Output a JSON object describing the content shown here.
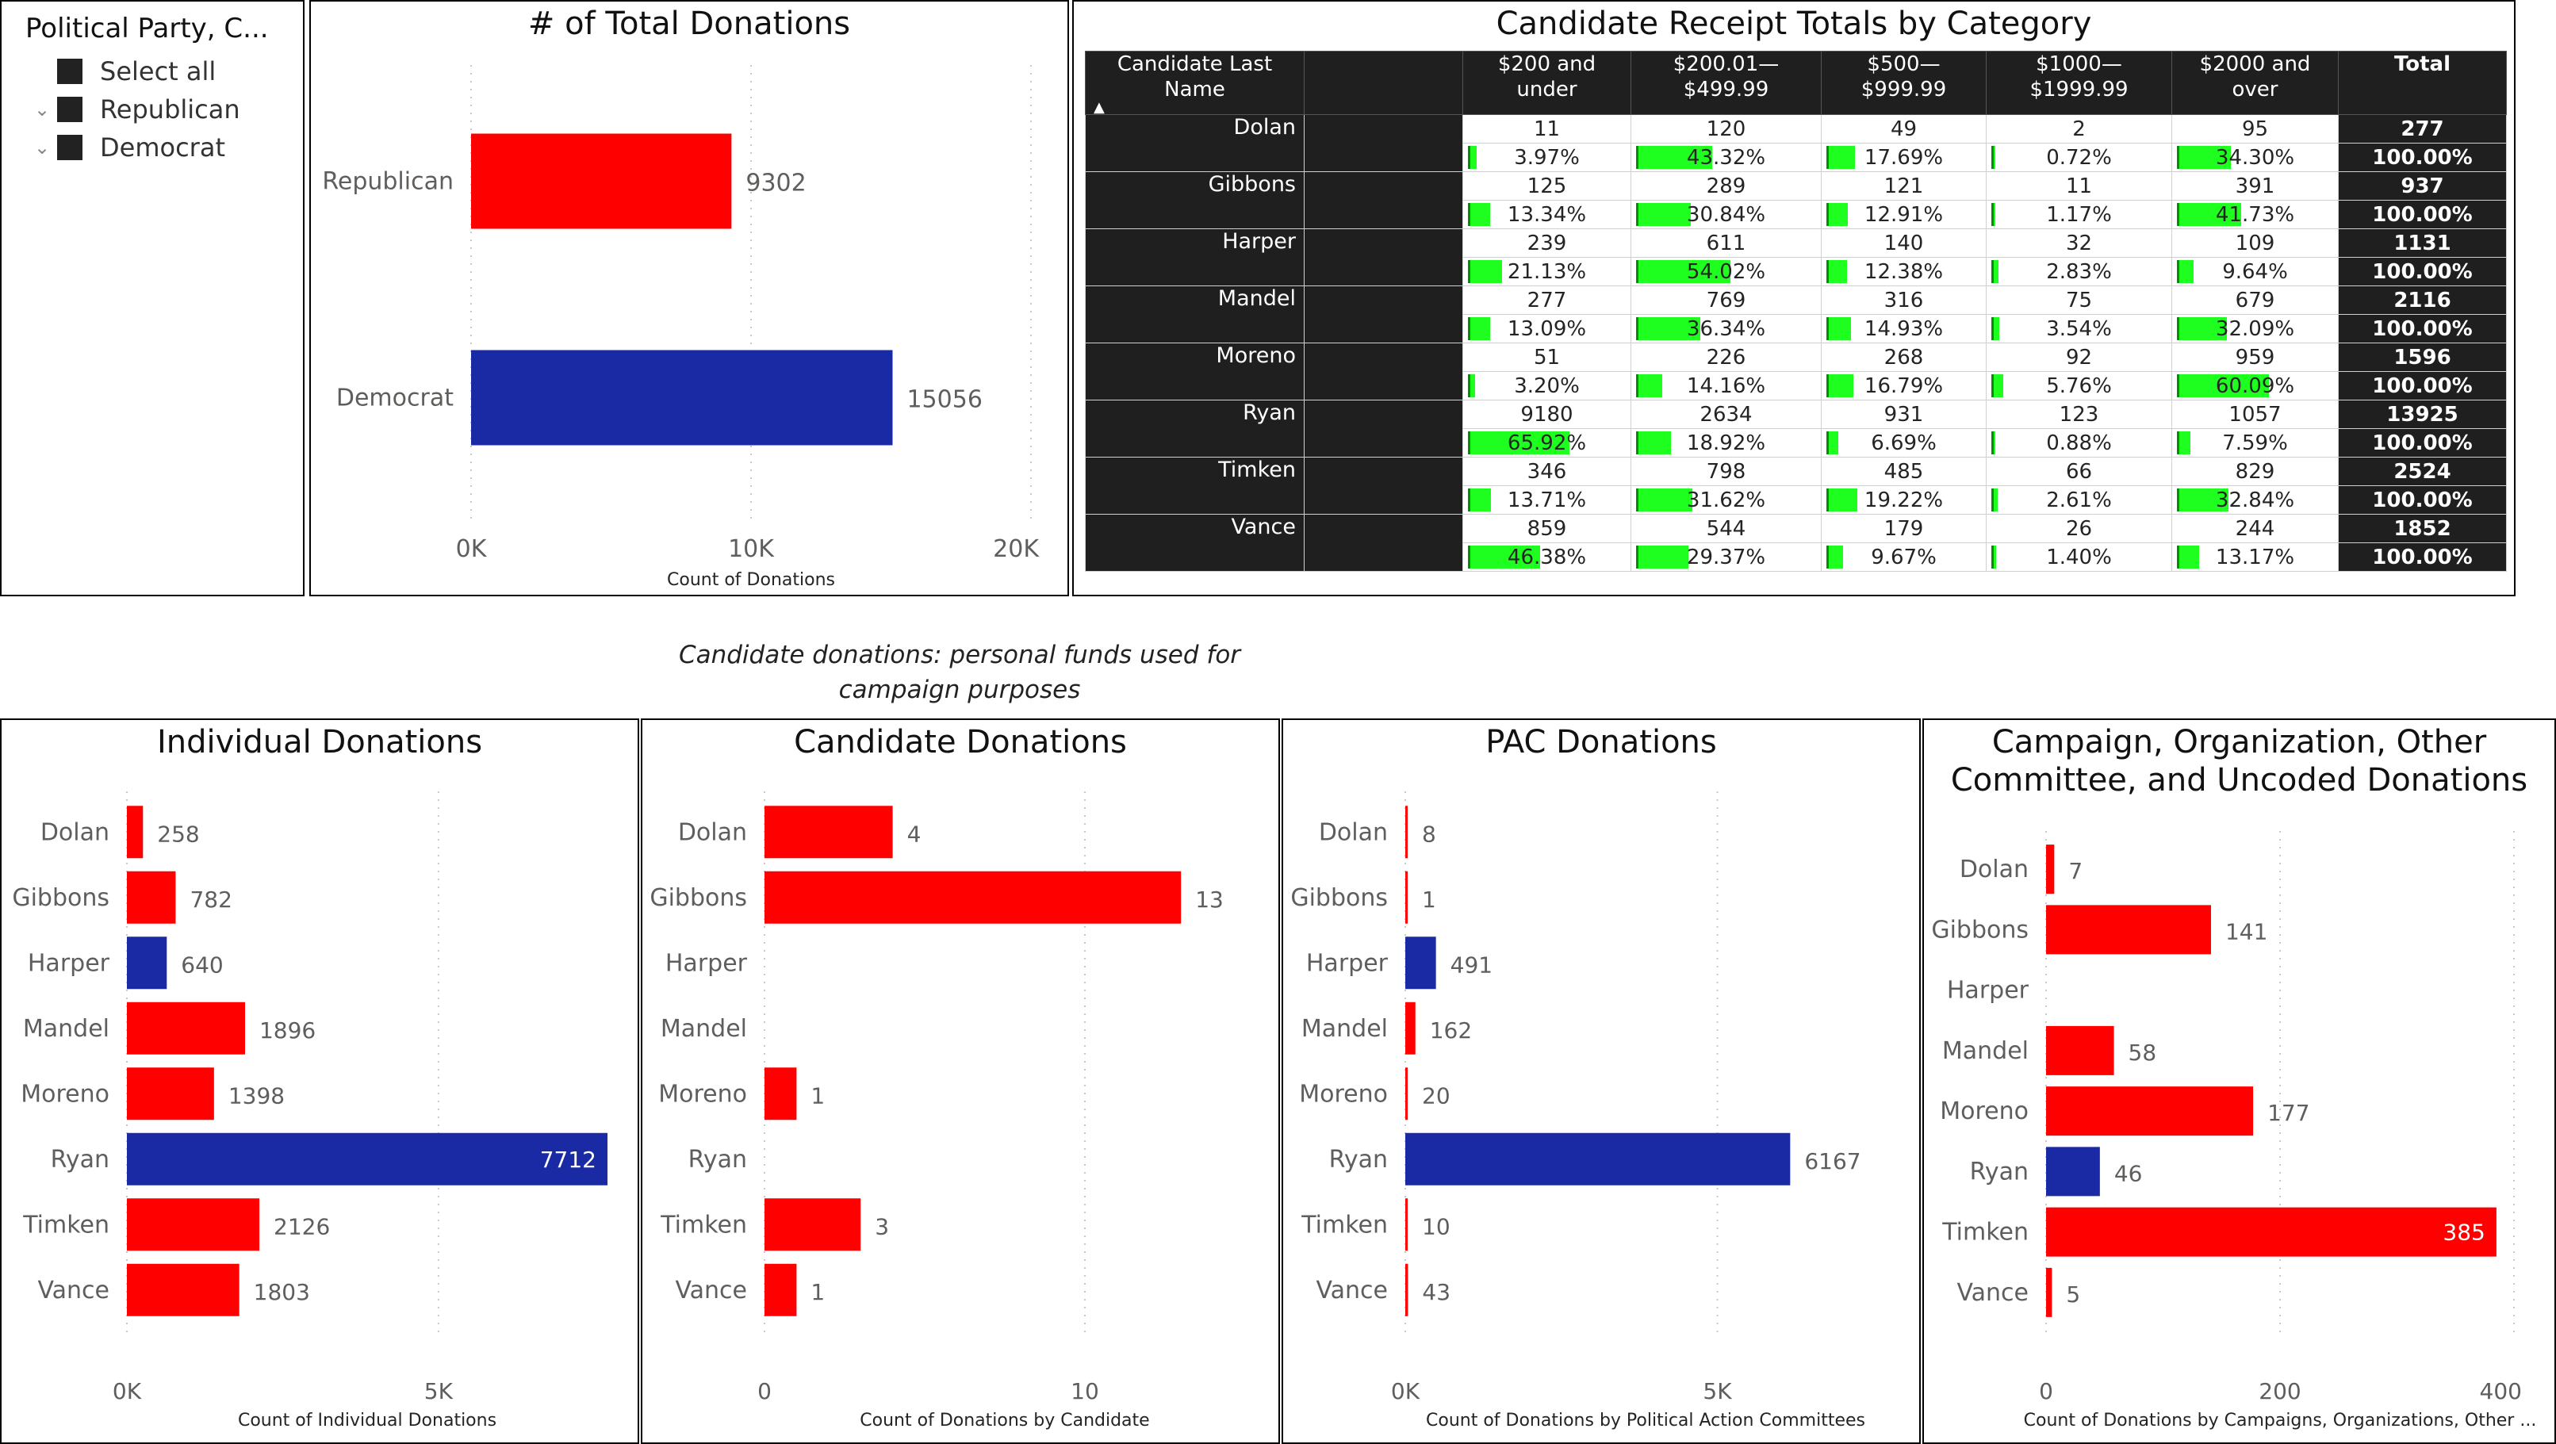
{
  "slicer": {
    "title": "Political Party, C...",
    "items": [
      {
        "label": "Select all",
        "chevron": false
      },
      {
        "label": "Republican",
        "chevron": true
      },
      {
        "label": "Democrat",
        "chevron": true
      }
    ]
  },
  "colors": {
    "republican": "#ff0000",
    "democrat": "#1a2aa5",
    "pct_bar": "#1fff1f"
  },
  "note": "Candidate donations: personal funds used for campaign purposes",
  "chart_data": [
    {
      "type": "bar",
      "title": "# of Total Donations",
      "categories": [
        "Republican",
        "Democrat"
      ],
      "values": [
        9302,
        15056
      ],
      "value_labels": [
        "9302",
        "15056"
      ],
      "colors": [
        "#ff0000",
        "#1a2aa5"
      ],
      "xlabel": "Count of Donations",
      "xlim": [
        0,
        20000
      ],
      "xticks": [
        0,
        10000,
        20000
      ],
      "xtick_labels": [
        "0K",
        "10K",
        "20K"
      ],
      "orientation": "horizontal"
    },
    {
      "type": "table",
      "title": "Candidate Receipt Totals by Category",
      "columns": [
        "Candidate Last Name",
        "",
        "$200 and under",
        "$200.01—$499.99",
        "$500—$999.99",
        "$1000—$1999.99",
        "$2000 and over",
        "Total"
      ],
      "rows": [
        {
          "name": "Dolan",
          "counts": [
            "11",
            "120",
            "49",
            "2",
            "95"
          ],
          "percents": [
            "3.97%",
            "43.32%",
            "17.69%",
            "0.72%",
            "34.30%"
          ],
          "total": "277",
          "total_pct": "100.00%"
        },
        {
          "name": "Gibbons",
          "counts": [
            "125",
            "289",
            "121",
            "11",
            "391"
          ],
          "percents": [
            "13.34%",
            "30.84%",
            "12.91%",
            "1.17%",
            "41.73%"
          ],
          "total": "937",
          "total_pct": "100.00%"
        },
        {
          "name": "Harper",
          "counts": [
            "239",
            "611",
            "140",
            "32",
            "109"
          ],
          "percents": [
            "21.13%",
            "54.02%",
            "12.38%",
            "2.83%",
            "9.64%"
          ],
          "total": "1131",
          "total_pct": "100.00%"
        },
        {
          "name": "Mandel",
          "counts": [
            "277",
            "769",
            "316",
            "75",
            "679"
          ],
          "percents": [
            "13.09%",
            "36.34%",
            "14.93%",
            "3.54%",
            "32.09%"
          ],
          "total": "2116",
          "total_pct": "100.00%"
        },
        {
          "name": "Moreno",
          "counts": [
            "51",
            "226",
            "268",
            "92",
            "959"
          ],
          "percents": [
            "3.20%",
            "14.16%",
            "16.79%",
            "5.76%",
            "60.09%"
          ],
          "total": "1596",
          "total_pct": "100.00%"
        },
        {
          "name": "Ryan",
          "counts": [
            "9180",
            "2634",
            "931",
            "123",
            "1057"
          ],
          "percents": [
            "65.92%",
            "18.92%",
            "6.69%",
            "0.88%",
            "7.59%"
          ],
          "total": "13925",
          "total_pct": "100.00%"
        },
        {
          "name": "Timken",
          "counts": [
            "346",
            "798",
            "485",
            "66",
            "829"
          ],
          "percents": [
            "13.71%",
            "31.62%",
            "19.22%",
            "2.61%",
            "32.84%"
          ],
          "total": "2524",
          "total_pct": "100.00%"
        },
        {
          "name": "Vance",
          "counts": [
            "859",
            "544",
            "179",
            "26",
            "244"
          ],
          "percents": [
            "46.38%",
            "29.37%",
            "9.67%",
            "1.40%",
            "13.17%"
          ],
          "total": "1852",
          "total_pct": "100.00%"
        }
      ]
    },
    {
      "type": "bar",
      "title": "Individual Donations",
      "categories": [
        "Dolan",
        "Gibbons",
        "Harper",
        "Mandel",
        "Moreno",
        "Ryan",
        "Timken",
        "Vance"
      ],
      "values": [
        258,
        782,
        640,
        1896,
        1398,
        7712,
        2126,
        1803
      ],
      "value_labels": [
        "258",
        "782",
        "640",
        "1896",
        "1398",
        "7712",
        "2126",
        "1803"
      ],
      "colors": [
        "#ff0000",
        "#ff0000",
        "#1a2aa5",
        "#ff0000",
        "#ff0000",
        "#1a2aa5",
        "#ff0000",
        "#ff0000"
      ],
      "xlabel": "Count of Individual Donations",
      "xlim": [
        0,
        7712
      ],
      "xticks": [
        0,
        5000
      ],
      "xtick_labels": [
        "0K",
        "5K"
      ],
      "orientation": "horizontal"
    },
    {
      "type": "bar",
      "title": "Candidate Donations",
      "categories": [
        "Dolan",
        "Gibbons",
        "Harper",
        "Mandel",
        "Moreno",
        "Ryan",
        "Timken",
        "Vance"
      ],
      "values": [
        4,
        13,
        0,
        0,
        1,
        0,
        3,
        1
      ],
      "value_labels": [
        "4",
        "13",
        "",
        "",
        "1",
        "",
        "3",
        "1"
      ],
      "colors": [
        "#ff0000",
        "#ff0000",
        "#ff0000",
        "#ff0000",
        "#ff0000",
        "#ff0000",
        "#ff0000",
        "#ff0000"
      ],
      "xlabel": "Count of Donations by Candidate",
      "xlim": [
        0,
        15
      ],
      "xticks": [
        0,
        10
      ],
      "xtick_labels": [
        "0",
        "10"
      ],
      "orientation": "horizontal"
    },
    {
      "type": "bar",
      "title": "PAC Donations",
      "categories": [
        "Dolan",
        "Gibbons",
        "Harper",
        "Mandel",
        "Moreno",
        "Ryan",
        "Timken",
        "Vance"
      ],
      "values": [
        8,
        1,
        491,
        162,
        20,
        6167,
        10,
        43
      ],
      "value_labels": [
        "8",
        "1",
        "491",
        "162",
        "20",
        "6167",
        "10",
        "43"
      ],
      "colors": [
        "#ff0000",
        "#ff0000",
        "#1a2aa5",
        "#ff0000",
        "#ff0000",
        "#1a2aa5",
        "#ff0000",
        "#ff0000"
      ],
      "xlabel": "Count of Donations by Political Action Committees",
      "xlim": [
        0,
        7700
      ],
      "xticks": [
        0,
        5000
      ],
      "xtick_labels": [
        "0K",
        "5K"
      ],
      "orientation": "horizontal"
    },
    {
      "type": "bar",
      "title": "Campaign, Organization, Other Committee, and Uncoded Donations",
      "categories": [
        "Dolan",
        "Gibbons",
        "Harper",
        "Mandel",
        "Moreno",
        "Ryan",
        "Timken",
        "Vance"
      ],
      "values": [
        7,
        141,
        0,
        58,
        177,
        46,
        385,
        5
      ],
      "value_labels": [
        "7",
        "141",
        "",
        "58",
        "177",
        "46",
        "385",
        "5"
      ],
      "colors": [
        "#ff0000",
        "#ff0000",
        "#ff0000",
        "#ff0000",
        "#ff0000",
        "#1a2aa5",
        "#ff0000",
        "#ff0000"
      ],
      "xlabel": "Count of Donations by Campaigns, Organizations, Other ...",
      "xlim": [
        0,
        400
      ],
      "xticks": [
        0,
        200,
        400
      ],
      "xtick_labels": [
        "0",
        "200",
        "400"
      ],
      "orientation": "horizontal"
    }
  ]
}
